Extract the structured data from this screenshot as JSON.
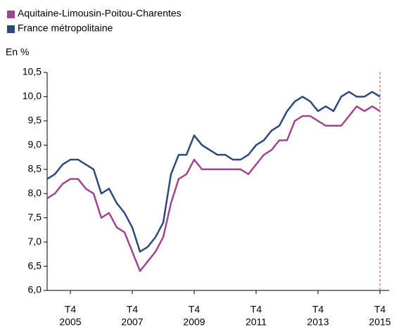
{
  "chart_data": {
    "type": "line",
    "y_axis_label": "En %",
    "categories": [
      null,
      null,
      null,
      [
        "T4",
        "2005"
      ],
      null,
      null,
      null,
      null,
      null,
      null,
      null,
      [
        "T4",
        "2007"
      ],
      null,
      null,
      null,
      null,
      null,
      null,
      null,
      [
        "T4",
        "2009"
      ],
      null,
      null,
      null,
      null,
      null,
      null,
      null,
      [
        "T4",
        "2011"
      ],
      null,
      null,
      null,
      null,
      null,
      null,
      null,
      [
        "T4",
        "2013"
      ],
      null,
      null,
      null,
      null,
      null,
      null,
      null,
      [
        "T4",
        "2015"
      ]
    ],
    "series": [
      {
        "name": "Aquitaine-Limousin-Poitou-Charentes",
        "color": "#a0468f",
        "values": [
          7.9,
          8.0,
          8.2,
          8.3,
          8.3,
          8.1,
          8.0,
          7.5,
          7.6,
          7.3,
          7.2,
          6.8,
          6.4,
          6.6,
          6.8,
          7.1,
          7.8,
          8.3,
          8.4,
          8.7,
          8.5,
          8.5,
          8.5,
          8.5,
          8.5,
          8.5,
          8.4,
          8.6,
          8.8,
          8.9,
          9.1,
          9.1,
          9.5,
          9.6,
          9.6,
          9.5,
          9.4,
          9.4,
          9.4,
          9.6,
          9.8,
          9.7,
          9.8,
          9.7
        ]
      },
      {
        "name": "France métropolitaine",
        "color": "#2c4a78",
        "values": [
          8.3,
          8.4,
          8.6,
          8.7,
          8.7,
          8.6,
          8.5,
          8.0,
          8.1,
          7.8,
          7.6,
          7.3,
          6.8,
          6.9,
          7.1,
          7.4,
          8.4,
          8.8,
          8.8,
          9.2,
          9.0,
          8.9,
          8.8,
          8.8,
          8.7,
          8.7,
          8.8,
          9.0,
          9.1,
          9.3,
          9.4,
          9.7,
          9.9,
          10.0,
          9.9,
          9.7,
          9.8,
          9.7,
          10.0,
          10.1,
          10.0,
          10.0,
          10.1,
          10.0
        ]
      }
    ],
    "ylim": [
      6.0,
      10.5
    ],
    "yticks": [
      {
        "value": 6.0,
        "label": "6,0"
      },
      {
        "value": 6.5,
        "label": "6,5"
      },
      {
        "value": 7.0,
        "label": "7,0"
      },
      {
        "value": 7.5,
        "label": "7,5"
      },
      {
        "value": 8.0,
        "label": "8,0"
      },
      {
        "value": 8.5,
        "label": "8,5"
      },
      {
        "value": 9.0,
        "label": "9,0"
      },
      {
        "value": 9.5,
        "label": "9,5"
      },
      {
        "value": 10.0,
        "label": "10,0"
      },
      {
        "value": 10.5,
        "label": "10,5"
      }
    ],
    "grid": false,
    "legend_position": "top-left"
  }
}
